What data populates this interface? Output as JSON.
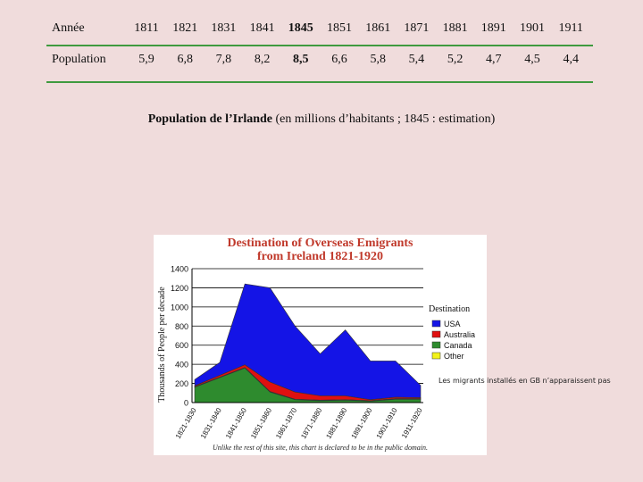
{
  "population_table": {
    "year_header": "Année",
    "value_header": "Population",
    "years": [
      "1811",
      "1821",
      "1831",
      "1841",
      "1845",
      "1851",
      "1861",
      "1871",
      "1881",
      "1891",
      "1901",
      "1911"
    ],
    "values": [
      "5,9",
      "6,8",
      "7,8",
      "8,2",
      "8,5",
      "6,6",
      "5,8",
      "5,4",
      "5,2",
      "4,7",
      "4,5",
      "4,4"
    ],
    "highlight": "1845"
  },
  "caption": {
    "bold": "Population de l’Irlande",
    "rest": " (en millions d’habitants ; 1845 : estimation)"
  },
  "note": "Les migrants  installés  en  GB  n’apparaissent pas",
  "chart_data": {
    "type": "area",
    "title": "Destination of Overseas Emigrants",
    "subtitle": "from Ireland 1821-1920",
    "ylabel": "Thousands of People per decade",
    "xlabel": "",
    "ylim": [
      0,
      1400
    ],
    "yticks": [
      "0",
      "200",
      "400",
      "600",
      "800",
      "1000",
      "1200",
      "1400"
    ],
    "categories": [
      "1821-1830",
      "1831-1840",
      "1841-1850",
      "1851-1860",
      "1861-1870",
      "1871-1880",
      "1881-1890",
      "1891-1900",
      "1901-1910",
      "1911-1920"
    ],
    "legend_title": "Destination",
    "legend_position": "right",
    "stacked": true,
    "series": [
      {
        "name": "Canada",
        "color": "#2e8b2e",
        "values": [
          160,
          260,
          360,
          110,
          30,
          20,
          25,
          15,
          35,
          35
        ]
      },
      {
        "name": "Other",
        "color": "#f2f21a",
        "values": [
          5,
          5,
          5,
          5,
          5,
          5,
          5,
          5,
          5,
          5
        ]
      },
      {
        "name": "Australia",
        "color": "#e01010",
        "values": [
          10,
          20,
          30,
          100,
          75,
          45,
          40,
          10,
          15,
          10
        ]
      },
      {
        "name": "USA",
        "color": "#1414e6",
        "values": [
          65,
          135,
          845,
          985,
          690,
          440,
          690,
          405,
          380,
          130
        ]
      }
    ],
    "legend_order": [
      "USA",
      "Australia",
      "Canada",
      "Other"
    ],
    "footnote": "Unlike the rest of this site, this chart is declared to be in the public domain."
  }
}
